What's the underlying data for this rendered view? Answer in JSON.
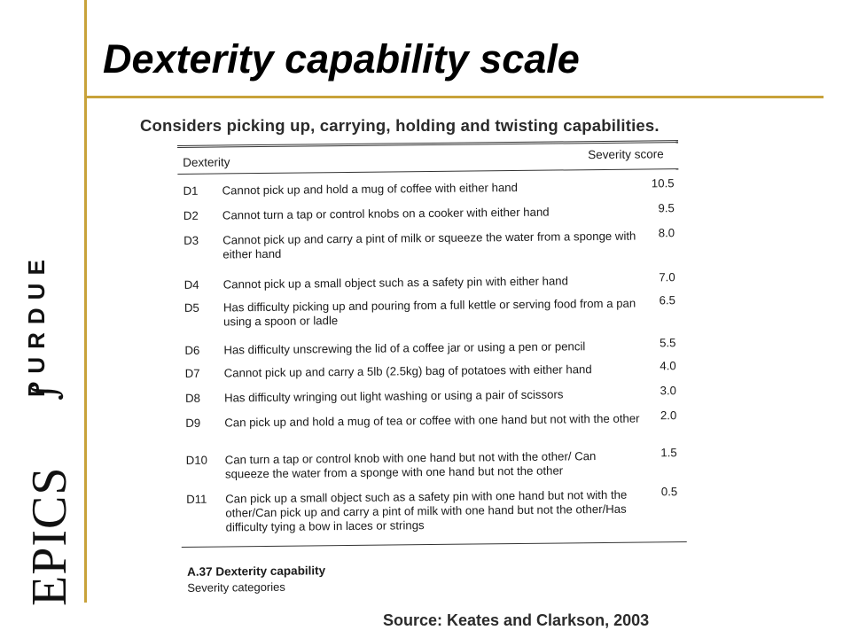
{
  "header": {
    "title": "Dexterity capability scale",
    "subtitle": "Considers picking up, carrying, holding and twisting capabilities."
  },
  "logo": {
    "epics": "EPICS",
    "integral": "∫",
    "purdue": "PURDUE"
  },
  "colors": {
    "accent_rule": "#c8a23a"
  },
  "table": {
    "col_dexterity": "Dexterity",
    "col_severity": "Severity score",
    "rows": [
      {
        "code": "D1",
        "desc": "Cannot pick up and hold a mug of coffee with either hand",
        "score": "10.5"
      },
      {
        "code": "D2",
        "desc": "Cannot turn a tap or control knobs on a cooker with either hand",
        "score": "9.5"
      },
      {
        "code": "D3",
        "desc": "Cannot pick up and carry a pint of milk or squeeze the water from a sponge with either hand",
        "score": "8.0"
      },
      {
        "code": "D4",
        "desc": "Cannot pick up a small object such as a safety pin with either hand",
        "score": "7.0"
      },
      {
        "code": "D5",
        "desc": "Has difficulty picking up and pouring from a full kettle or serving food from a pan using a spoon or ladle",
        "score": "6.5"
      },
      {
        "code": "D6",
        "desc": "Has difficulty unscrewing the lid of a coffee jar or using a pen or pencil",
        "score": "5.5"
      },
      {
        "code": "D7",
        "desc": "Cannot pick up and carry a 5lb (2.5kg) bag of potatoes with either hand",
        "score": "4.0"
      },
      {
        "code": "D8",
        "desc": "Has difficulty wringing out light washing or using a pair of scissors",
        "score": "3.0"
      },
      {
        "code": "D9",
        "desc": "Can pick up and hold a mug of tea or coffee with one hand but not with the other",
        "score": "2.0"
      },
      {
        "code": "D10",
        "desc": "Can turn a tap or control knob with one hand but not with the other/ Can squeeze the water from a sponge with one hand but not the other",
        "score": "1.5"
      },
      {
        "code": "D11",
        "desc": "Can pick up a small object such as a safety pin with one hand but not with the other/Can pick up and carry a pint of milk with one hand but not the other/Has difficulty tying a bow in laces or strings",
        "score": "0.5"
      }
    ],
    "caption_title": "A.37 Dexterity capability",
    "caption_sub": "Severity categories"
  },
  "footer": {
    "source": "Source: Keates and Clarkson, 2003"
  }
}
